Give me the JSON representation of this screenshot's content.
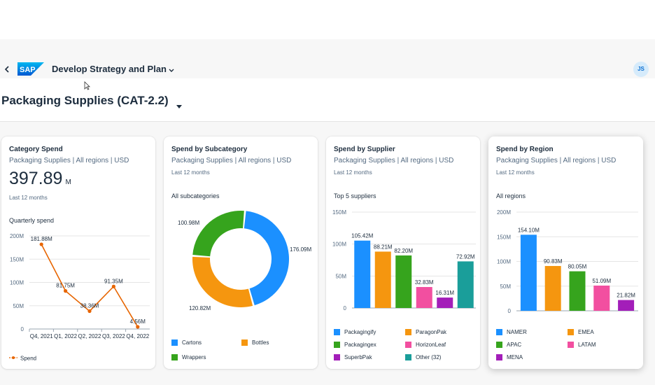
{
  "shell": {
    "app_title": "Develop Strategy and Plan",
    "avatar_initials": "JS",
    "brand_color": "#0a6ed1"
  },
  "page": {
    "title": "Packaging Supplies (CAT-2.2)"
  },
  "cards": {
    "category_spend": {
      "title": "Category Spend",
      "subtitle": "Packaging Supplies | All regions | USD",
      "kpi_value": "397.89",
      "kpi_unit": "M",
      "period": "Last 12 months",
      "chart_label": "Quarterly spend",
      "legend": "Spend"
    },
    "spend_by_subcategory": {
      "title": "Spend by Subcategory",
      "subtitle": "Packaging Supplies | All regions | USD",
      "period": "Last 12 months",
      "chart_label": "All subcategories"
    },
    "spend_by_supplier": {
      "title": "Spend by Supplier",
      "subtitle": "Packaging Supplies | All regions | USD",
      "period": "Last 12 months",
      "chart_label": "Top 5 suppliers"
    },
    "spend_by_region": {
      "title": "Spend by Region",
      "subtitle": "Packaging Supplies | All regions | USD",
      "period": "Last 12 months",
      "chart_label": "All regions"
    }
  },
  "chart_data": [
    {
      "type": "line",
      "categories": [
        "Q4, 2021",
        "Q1, 2022",
        "Q2, 2022",
        "Q3, 2022",
        "Q4, 2022"
      ],
      "series": [
        {
          "name": "Spend",
          "values": [
            181.88,
            81.75,
            38.36,
            91.35,
            4.56
          ],
          "labels": [
            "181.88M",
            "81.75M",
            "38.36M",
            "91.35M",
            "4.56M"
          ],
          "color": "#e76500"
        }
      ],
      "y_ticks": [
        "0",
        "50M",
        "100M",
        "150M",
        "200M"
      ],
      "ylim": [
        0,
        200
      ],
      "grid": true
    },
    {
      "type": "pie",
      "variant": "donut",
      "slices": [
        {
          "name": "Cartons",
          "value": 176.09,
          "label": "176.09M",
          "color": "#1b90ff"
        },
        {
          "name": "Bottles",
          "value": 120.82,
          "label": "120.82M",
          "color": "#f5960f"
        },
        {
          "name": "Wrappers",
          "value": 100.98,
          "label": "100.98M",
          "color": "#36a41d"
        }
      ]
    },
    {
      "type": "bar",
      "categories": [
        "Packagingify",
        "ParagonPak",
        "Packagingex",
        "HorizonLeaf",
        "SuperbPak",
        "Other (32)"
      ],
      "values": [
        105.42,
        88.21,
        82.2,
        32.83,
        16.31,
        72.92
      ],
      "labels": [
        "105.42M",
        "88.21M",
        "82.20M",
        "32.83M",
        "16.31M",
        "72.92M"
      ],
      "bar_order": [
        "Packagingify",
        "ParagonPak",
        "Packagingex",
        "HorizonLeaf",
        "SuperbPak",
        "Other (32)"
      ],
      "colors": [
        "#1b90ff",
        "#f5960f",
        "#36a41d",
        "#f24fa0",
        "#a31eb9",
        "#1a9e9a"
      ],
      "y_ticks": [
        "0",
        "50M",
        "100M",
        "150M"
      ],
      "ylim": [
        0,
        150
      ],
      "grid": true
    },
    {
      "type": "bar",
      "categories": [
        "NAMER",
        "EMEA",
        "APAC",
        "LATAM",
        "MENA"
      ],
      "values": [
        154.1,
        90.83,
        80.05,
        51.09,
        21.82
      ],
      "labels": [
        "154.10M",
        "90.83M",
        "80.05M",
        "51.09M",
        "21.82M"
      ],
      "colors": [
        "#1b90ff",
        "#f5960f",
        "#36a41d",
        "#f24fa0",
        "#a31eb9"
      ],
      "y_ticks": [
        "0",
        "50M",
        "100M",
        "150M",
        "200M"
      ],
      "ylim": [
        0,
        200
      ],
      "grid": true
    }
  ]
}
